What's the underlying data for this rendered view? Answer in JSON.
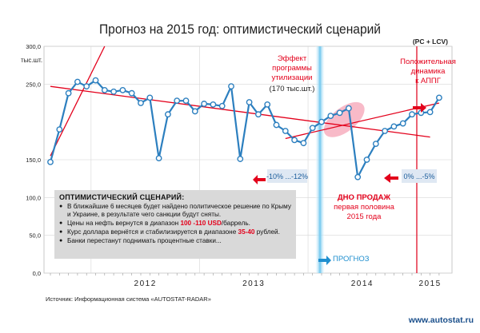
{
  "page": {
    "title": "Прогноз на 2015 год: оптимистический сценарий",
    "legend_note": "(PC + LCV)",
    "source": "Источник: Информационная система «AUTOSTAT-RADAR»",
    "site": "www.autostat.ru"
  },
  "colors": {
    "line": "#2c7fbf",
    "marker_fill": "#ffffff",
    "trend": "#e3001b",
    "highlight": "#f5a3b5",
    "forecast_band": "#6ec6ee",
    "scenario_box": "#d9d9d9",
    "title": "#222222"
  },
  "annotations": {
    "util_effect": [
      "Эффект",
      "программы",
      "утилизации",
      "(170 тыс.шт.)"
    ],
    "positive": [
      "Положительная",
      "динамика",
      "к АППГ"
    ],
    "bottom": [
      "ДНО ПРОДАЖ",
      "первая половина",
      "2015 года"
    ],
    "drop_range": "-10% ...-12%",
    "forecast_range": "0% ...-5%",
    "forecast_label": "ПРОГНОЗ"
  },
  "scenario": {
    "title": "ОПТИМИСТИЧЕСКИЙ СЦЕНАРИЙ:",
    "items": [
      {
        "parts": [
          "В ближайшие 6 месяцев будет найдено политическое решение по Крыму и Украине, в результате чего санкции будут сняты."
        ]
      },
      {
        "parts": [
          "Цены на нефть вернутся в диапазон ",
          "100 -110 USD",
          "/баррель."
        ]
      },
      {
        "parts": [
          "Курс доллара вернётся и стабилизируется в диапазоне ",
          "35-40",
          " рублей."
        ]
      },
      {
        "parts": [
          "Банки перестанут поднимать процентные ставки..."
        ]
      }
    ]
  },
  "chart_data": {
    "type": "line",
    "title": "Прогноз на 2015 год: оптимистический сценарий",
    "ylabel": "тыс.шт.",
    "y_tick_labels": [
      "0,0",
      "50,0",
      "100,0",
      "150,0",
      "250,0",
      "300,0"
    ],
    "y_ticks": [
      0,
      50,
      100,
      150,
      250,
      300
    ],
    "ylim": [
      0,
      300
    ],
    "x_tick_labels": [
      "2012",
      "2013",
      "2014",
      "2015"
    ],
    "x_start": "2011-08",
    "series": [
      {
        "values": [
          147,
          190,
          238,
          253,
          247,
          255,
          242,
          240,
          242,
          238,
          225,
          232,
          152,
          210,
          228,
          228,
          214,
          224,
          223,
          221,
          247,
          151,
          226,
          210,
          223,
          196,
          188,
          176,
          172,
          192,
          200,
          208,
          212,
          218,
          127,
          150,
          171,
          188,
          194,
          198,
          210,
          212,
          213,
          232
        ],
        "segments": [
          {
            "from": 0,
            "to": 34,
            "style": "actual"
          },
          {
            "from": 34,
            "to": 43,
            "style": "forecast"
          }
        ]
      }
    ],
    "trend_lines": [
      {
        "name": "trend-2012",
        "from": [
          0,
          155
        ],
        "to": [
          6,
          300
        ]
      },
      {
        "name": "trend-descending",
        "from": [
          0,
          247
        ],
        "to": [
          42,
          180
        ]
      },
      {
        "name": "trend-recovery",
        "from": [
          26,
          178
        ],
        "to": [
          43,
          225
        ]
      }
    ],
    "forecast_marker_month": 32,
    "bottom_line_month": 40
  }
}
